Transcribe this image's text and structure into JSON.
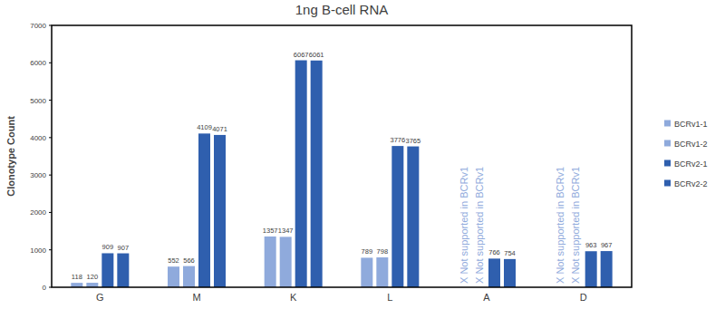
{
  "chart_data": {
    "type": "bar",
    "title": "1ng B-cell RNA",
    "y_label": "Clonotype Count",
    "categories": [
      "G",
      "M",
      "K",
      "L",
      "A",
      "D"
    ],
    "series": [
      {
        "name": "BCRv1-1",
        "color": "#8faadc",
        "values": [
          118,
          552,
          1357,
          789,
          null,
          null
        ]
      },
      {
        "name": "BCRv1-2",
        "color": "#8faadc",
        "values": [
          120,
          566,
          1347,
          798,
          null,
          null
        ]
      },
      {
        "name": "BCRv2-1",
        "color": "#2f5fae",
        "values": [
          909,
          4109,
          6067,
          3776,
          766,
          963
        ]
      },
      {
        "name": "BCRv2-2",
        "color": "#2f5fae",
        "values": [
          907,
          4071,
          6061,
          3765,
          754,
          967
        ]
      }
    ],
    "annotations": [
      {
        "text": "X Not supported in BCRv1",
        "category": "A",
        "series": "BCRv1-1"
      },
      {
        "text": "X Not supported in BCRv1",
        "category": "A",
        "series": "BCRv1-2"
      },
      {
        "text": "X Not supported in BCRv1",
        "category": "D",
        "series": "BCRv1-1"
      },
      {
        "text": "X Not supported in BCRv1",
        "category": "D",
        "series": "BCRv1-2"
      }
    ],
    "ylim": [
      0,
      7000
    ],
    "yticks": [
      0,
      1000,
      2000,
      3000,
      4000,
      5000,
      6000,
      7000
    ],
    "grid": false,
    "legend": "right",
    "data_labels": true
  }
}
